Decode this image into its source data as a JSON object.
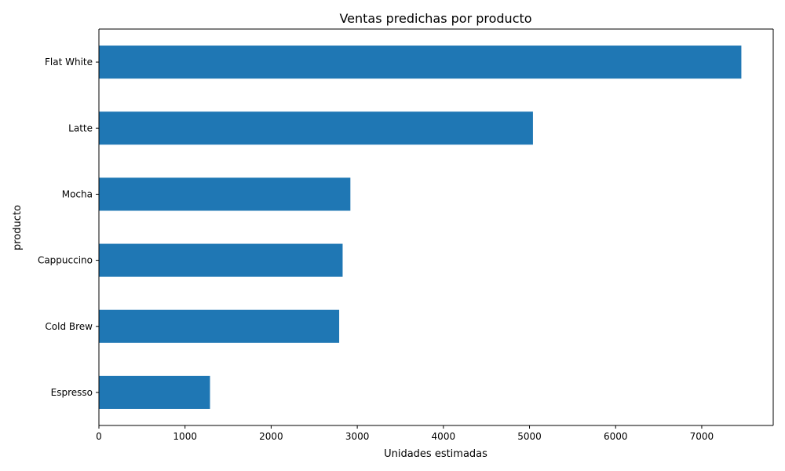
{
  "chart_data": {
    "type": "bar",
    "orientation": "horizontal",
    "title": "Ventas predichas por producto",
    "xlabel": "Unidades estimadas",
    "ylabel": "producto",
    "categories": [
      "Espresso",
      "Cold Brew",
      "Cappuccino",
      "Mocha",
      "Latte",
      "Flat White"
    ],
    "values": [
      1290,
      2790,
      2830,
      2920,
      5040,
      7460
    ],
    "xlim": [
      0,
      7830
    ],
    "xticks": [
      0,
      1000,
      2000,
      3000,
      4000,
      5000,
      6000,
      7000
    ],
    "xtick_labels": [
      "0",
      "1000",
      "2000",
      "3000",
      "4000",
      "5000",
      "6000",
      "7000"
    ],
    "grid": false,
    "legend": "none",
    "bar_color": "#1f77b4"
  }
}
